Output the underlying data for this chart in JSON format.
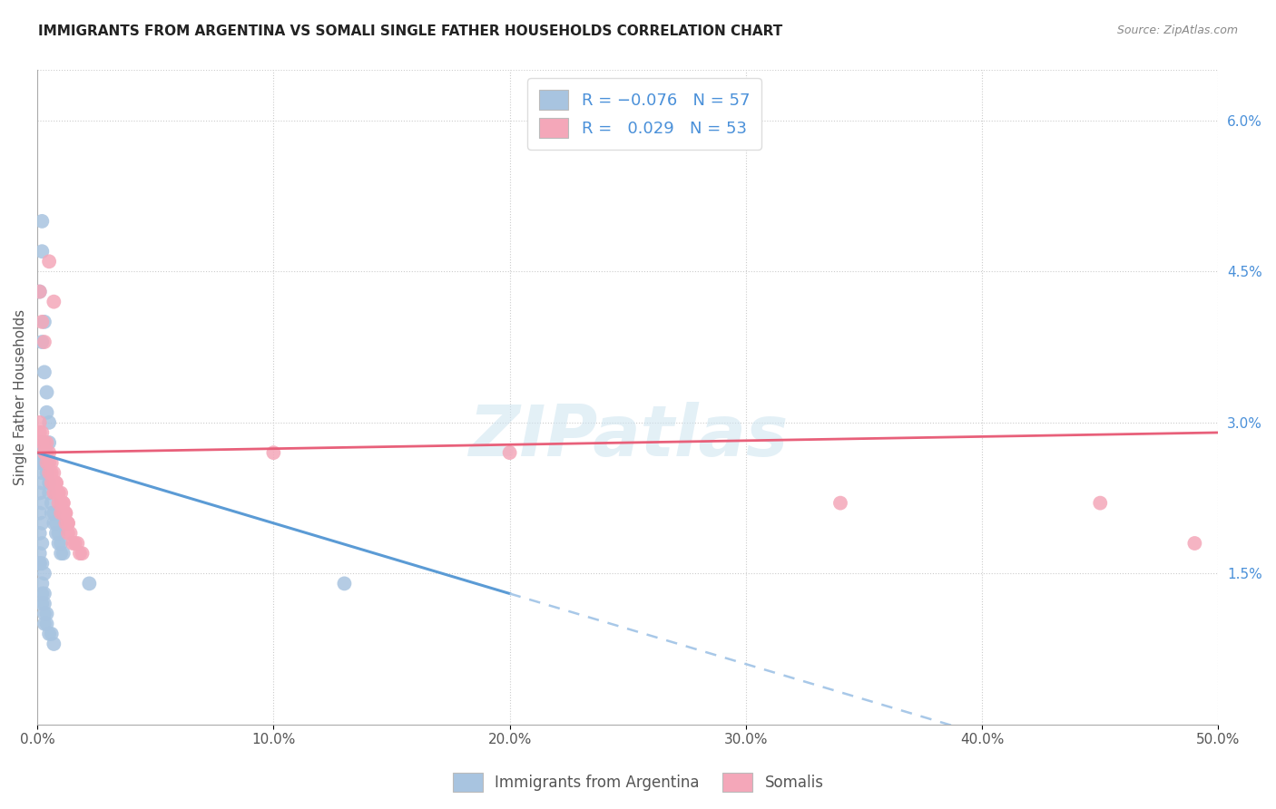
{
  "title": "IMMIGRANTS FROM ARGENTINA VS SOMALI SINGLE FATHER HOUSEHOLDS CORRELATION CHART",
  "source": "Source: ZipAtlas.com",
  "ylabel": "Single Father Households",
  "x_min": 0.0,
  "x_max": 0.5,
  "y_min": 0.0,
  "y_max": 0.065,
  "x_ticks": [
    0.0,
    0.1,
    0.2,
    0.3,
    0.4,
    0.5
  ],
  "x_tick_labels": [
    "0.0%",
    "10.0%",
    "20.0%",
    "30.0%",
    "40.0%",
    "50.0%"
  ],
  "y_ticks_right": [
    0.015,
    0.03,
    0.045,
    0.06
  ],
  "y_tick_labels_right": [
    "1.5%",
    "3.0%",
    "4.5%",
    "6.0%"
  ],
  "argentina_color": "#a8c4e0",
  "somali_color": "#f4a7b9",
  "argentina_R": -0.076,
  "argentina_N": 57,
  "somali_R": 0.029,
  "somali_N": 53,
  "legend_label_argentina": "Immigrants from Argentina",
  "legend_label_somali": "Somalis",
  "watermark": "ZIPatlas",
  "argentina_points": [
    [
      0.001,
      0.028
    ],
    [
      0.001,
      0.026
    ],
    [
      0.002,
      0.05
    ],
    [
      0.002,
      0.047
    ],
    [
      0.001,
      0.043
    ],
    [
      0.003,
      0.04
    ],
    [
      0.002,
      0.038
    ],
    [
      0.003,
      0.035
    ],
    [
      0.004,
      0.033
    ],
    [
      0.004,
      0.031
    ],
    [
      0.005,
      0.03
    ],
    [
      0.005,
      0.028
    ],
    [
      0.003,
      0.027
    ],
    [
      0.004,
      0.026
    ],
    [
      0.004,
      0.025
    ],
    [
      0.005,
      0.024
    ],
    [
      0.005,
      0.023
    ],
    [
      0.006,
      0.022
    ],
    [
      0.006,
      0.021
    ],
    [
      0.007,
      0.021
    ],
    [
      0.007,
      0.02
    ],
    [
      0.008,
      0.02
    ],
    [
      0.008,
      0.019
    ],
    [
      0.009,
      0.019
    ],
    [
      0.009,
      0.018
    ],
    [
      0.01,
      0.018
    ],
    [
      0.01,
      0.017
    ],
    [
      0.011,
      0.017
    ],
    [
      0.001,
      0.027
    ],
    [
      0.001,
      0.026
    ],
    [
      0.002,
      0.025
    ],
    [
      0.002,
      0.024
    ],
    [
      0.001,
      0.023
    ],
    [
      0.002,
      0.022
    ],
    [
      0.001,
      0.021
    ],
    [
      0.002,
      0.02
    ],
    [
      0.001,
      0.019
    ],
    [
      0.002,
      0.018
    ],
    [
      0.001,
      0.017
    ],
    [
      0.001,
      0.016
    ],
    [
      0.002,
      0.016
    ],
    [
      0.003,
      0.015
    ],
    [
      0.002,
      0.014
    ],
    [
      0.003,
      0.013
    ],
    [
      0.002,
      0.013
    ],
    [
      0.003,
      0.012
    ],
    [
      0.002,
      0.012
    ],
    [
      0.003,
      0.011
    ],
    [
      0.004,
      0.011
    ],
    [
      0.003,
      0.01
    ],
    [
      0.004,
      0.01
    ],
    [
      0.005,
      0.009
    ],
    [
      0.006,
      0.009
    ],
    [
      0.007,
      0.008
    ],
    [
      0.13,
      0.014
    ],
    [
      0.022,
      0.014
    ],
    [
      0.001,
      0.016
    ]
  ],
  "somali_points": [
    [
      0.001,
      0.043
    ],
    [
      0.002,
      0.04
    ],
    [
      0.003,
      0.038
    ],
    [
      0.005,
      0.046
    ],
    [
      0.007,
      0.042
    ],
    [
      0.001,
      0.03
    ],
    [
      0.002,
      0.029
    ],
    [
      0.003,
      0.028
    ],
    [
      0.004,
      0.028
    ],
    [
      0.003,
      0.027
    ],
    [
      0.004,
      0.027
    ],
    [
      0.005,
      0.027
    ],
    [
      0.005,
      0.026
    ],
    [
      0.006,
      0.026
    ],
    [
      0.006,
      0.025
    ],
    [
      0.007,
      0.025
    ],
    [
      0.007,
      0.024
    ],
    [
      0.008,
      0.024
    ],
    [
      0.008,
      0.024
    ],
    [
      0.009,
      0.023
    ],
    [
      0.009,
      0.023
    ],
    [
      0.01,
      0.023
    ],
    [
      0.01,
      0.022
    ],
    [
      0.011,
      0.022
    ],
    [
      0.011,
      0.022
    ],
    [
      0.012,
      0.021
    ],
    [
      0.012,
      0.021
    ],
    [
      0.013,
      0.02
    ],
    [
      0.013,
      0.02
    ],
    [
      0.001,
      0.029
    ],
    [
      0.002,
      0.028
    ],
    [
      0.003,
      0.027
    ],
    [
      0.004,
      0.026
    ],
    [
      0.005,
      0.025
    ],
    [
      0.006,
      0.024
    ],
    [
      0.007,
      0.023
    ],
    [
      0.008,
      0.023
    ],
    [
      0.009,
      0.022
    ],
    [
      0.01,
      0.021
    ],
    [
      0.011,
      0.021
    ],
    [
      0.012,
      0.02
    ],
    [
      0.013,
      0.019
    ],
    [
      0.014,
      0.019
    ],
    [
      0.015,
      0.018
    ],
    [
      0.016,
      0.018
    ],
    [
      0.017,
      0.018
    ],
    [
      0.018,
      0.017
    ],
    [
      0.019,
      0.017
    ],
    [
      0.1,
      0.027
    ],
    [
      0.2,
      0.027
    ],
    [
      0.34,
      0.022
    ],
    [
      0.45,
      0.022
    ],
    [
      0.49,
      0.018
    ]
  ]
}
